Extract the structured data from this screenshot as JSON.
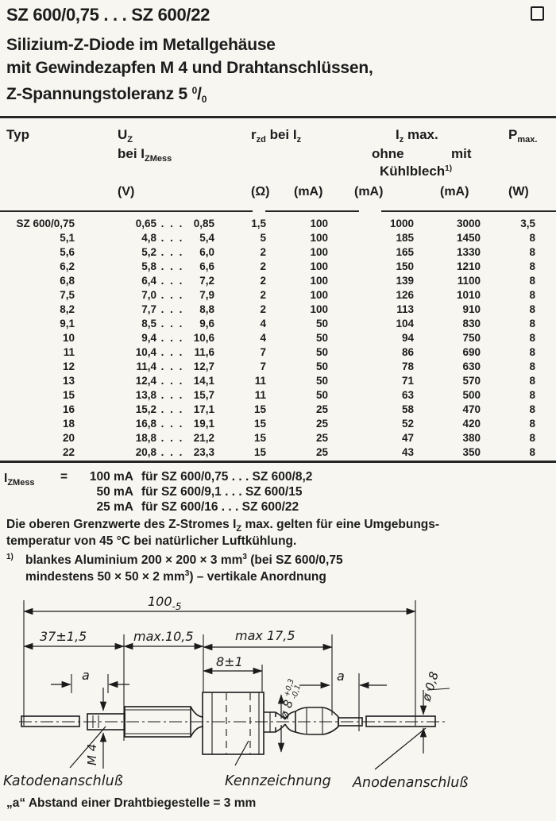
{
  "colors": {
    "ink": "#1c1c1c",
    "paper": "#f7f6f1"
  },
  "header": {
    "title": "SZ 600/0,75 . . . SZ 600/22",
    "subtitle_line1": "Silizium-Z-Diode im Metallgehäuse",
    "subtitle_line2": "mit Gewindezapfen M 4 und Drahtanschlüssen,",
    "subtitle_line3_text": "Z-Spannungstoleranz 5",
    "subtitle_line3_sup": "0",
    "subtitle_line3_slash": "/",
    "subtitle_line3_sub": "0"
  },
  "table": {
    "col_typ": "Typ",
    "uz_base": "U",
    "uz_sub": "Z",
    "uz_line2_base": "bei I",
    "uz_line2_sub": "ZMess",
    "rzd_base": "r",
    "rzd_sub": "zd",
    "rzd_mid": " bei I",
    "rzd_sub2": "z",
    "izmax_base": "I",
    "izmax_sub": "z",
    "izmax_post": " max.",
    "ohne": "ohne",
    "mit": "mit",
    "kuehlblech_base": "Kühlblech",
    "kuehlblech_sup": "1)",
    "pmax_base": "P",
    "pmax_sub": "max.",
    "unit_v": "(V)",
    "unit_ohm": "(Ω)",
    "unit_ma1": "(mA)",
    "unit_ma2": "(mA)",
    "unit_ma3": "(mA)",
    "unit_w": "(W)",
    "dots": ". . .",
    "rows": [
      [
        "SZ 600/0,75",
        "0,65",
        "0,85",
        "1,5",
        "100",
        "1000",
        "3000",
        "3,5"
      ],
      [
        "5,1",
        "4,8",
        "5,4",
        "5",
        "100",
        "185",
        "1450",
        "8"
      ],
      [
        "5,6",
        "5,2",
        "6,0",
        "2",
        "100",
        "165",
        "1330",
        "8"
      ],
      [
        "6,2",
        "5,8",
        "6,6",
        "2",
        "100",
        "150",
        "1210",
        "8"
      ],
      [
        "6,8",
        "6,4",
        "7,2",
        "2",
        "100",
        "139",
        "1100",
        "8"
      ],
      [
        "7,5",
        "7,0",
        "7,9",
        "2",
        "100",
        "126",
        "1010",
        "8"
      ],
      [
        "8,2",
        "7,7",
        "8,8",
        "2",
        "100",
        "113",
        "910",
        "8"
      ],
      [
        "9,1",
        "8,5",
        "9,6",
        "4",
        "50",
        "104",
        "830",
        "8"
      ],
      [
        "10",
        "9,4",
        "10,6",
        "4",
        "50",
        "94",
        "750",
        "8"
      ],
      [
        "11",
        "10,4",
        "11,6",
        "7",
        "50",
        "86",
        "690",
        "8"
      ],
      [
        "12",
        "11,4",
        "12,7",
        "7",
        "50",
        "78",
        "630",
        "8"
      ],
      [
        "13",
        "12,4",
        "14,1",
        "11",
        "50",
        "71",
        "570",
        "8"
      ],
      [
        "15",
        "13,8",
        "15,7",
        "11",
        "50",
        "63",
        "500",
        "8"
      ],
      [
        "16",
        "15,2",
        "17,1",
        "15",
        "25",
        "58",
        "470",
        "8"
      ],
      [
        "18",
        "16,8",
        "19,1",
        "15",
        "25",
        "52",
        "420",
        "8"
      ],
      [
        "20",
        "18,8",
        "21,2",
        "15",
        "25",
        "47",
        "380",
        "8"
      ],
      [
        "22",
        "20,8",
        "23,3",
        "15",
        "25",
        "43",
        "350",
        "8"
      ]
    ]
  },
  "notes": {
    "mess_label_base": "I",
    "mess_label_sub": "ZMess",
    "mess_eq": "=",
    "mess_lines": [
      {
        "amount": "100 mA",
        "rest": "für SZ 600/0,75 . . . SZ 600/8,2"
      },
      {
        "amount": "50 mA",
        "rest": "für SZ 600/9,1  . . . SZ 600/15"
      },
      {
        "amount": "25 mA",
        "rest": "für SZ 600/16   . . . SZ 600/22"
      }
    ],
    "ambient_pre": "Die oberen Grenzwerte des Z-Stromes I",
    "ambient_sub": "Z",
    "ambient_post": " max. gelten für eine Umgebungs-",
    "ambient_line2": "temperatur von 45 °C bei natürlicher Luftkühlung.",
    "fn1_marker": "1)",
    "fn1_l1_pre": "blankes Aluminium 200 × 200 × 3 mm",
    "fn1_l1_sup": "3",
    "fn1_l1_post": " (bei SZ 600/0,75",
    "fn1_l2_pre": "mindestens 50 × 50 × 2 mm",
    "fn1_l2_sup": "3",
    "fn1_l2_post": ")  –  vertikale Anordnung",
    "bend_note": "„a“ Abstand einer Drahtbiegestelle = 3 mm"
  },
  "drawing": {
    "dim_overall_base": "100",
    "dim_overall_sub": "-5",
    "dim_left": "37±1,5",
    "dim_mid": "max.10,5",
    "dim_right": "max 17,5",
    "dim_body": "8±1",
    "dim_a_left": "a",
    "dim_a_right": "a",
    "m4": "M 4",
    "dia_body_base": "ø 8",
    "dia_body_sup": "+0,3",
    "dia_body_sub": "-0,1",
    "dia_wire": "ø 0,8",
    "kathode": "Katodenanschluß",
    "kenn": "Kennzeichnung",
    "anode": "Anodenanschluß"
  }
}
